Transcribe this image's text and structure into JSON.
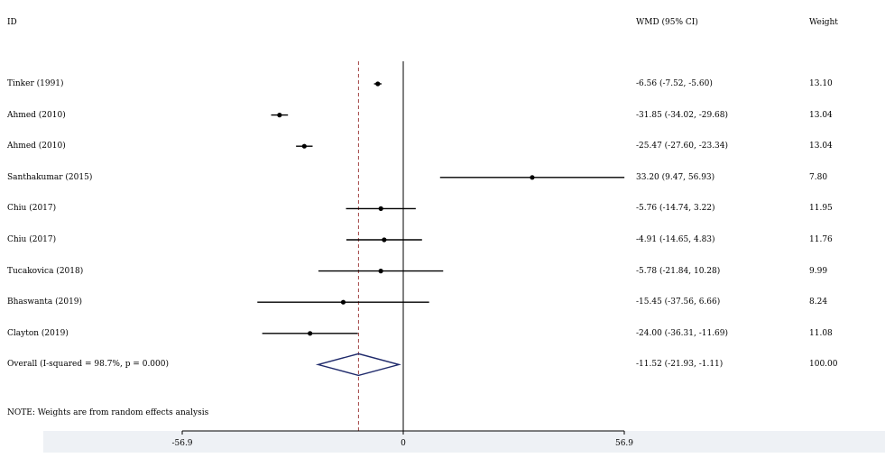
{
  "header": {
    "id_label": "ID",
    "wmd_label": "WMD (95% CI)",
    "weight_label": "Weight"
  },
  "note": "NOTE: Weights are from random effects analysis",
  "colors": {
    "diamond": "#1f2a6b",
    "reference_line": "#a04040",
    "axis_band": "#eef1f5"
  },
  "chart_data": {
    "type": "forest",
    "x_ticks": [
      -56.9,
      0,
      56.9
    ],
    "x_tick_labels": [
      "-56.9",
      "0",
      "56.9"
    ],
    "xlim": [
      -56.9,
      56.9
    ],
    "null_line": 0,
    "overall_line": -11.52,
    "studies": [
      {
        "id": "Tinker (1991)",
        "est": -6.56,
        "lo": -7.52,
        "hi": -5.6,
        "ci_text": "-6.56 (-7.52, -5.60)",
        "weight": "13.10"
      },
      {
        "id": "Ahmed (2010)",
        "est": -31.85,
        "lo": -34.02,
        "hi": -29.68,
        "ci_text": "-31.85 (-34.02, -29.68)",
        "weight": "13.04"
      },
      {
        "id": "Ahmed (2010)",
        "est": -25.47,
        "lo": -27.6,
        "hi": -23.34,
        "ci_text": "-25.47 (-27.60, -23.34)",
        "weight": "13.04"
      },
      {
        "id": "Santhakumar (2015)",
        "est": 33.2,
        "lo": 9.47,
        "hi": 56.93,
        "ci_text": "33.20 (9.47, 56.93)",
        "weight": "7.80"
      },
      {
        "id": "Chiu (2017)",
        "est": -5.76,
        "lo": -14.74,
        "hi": 3.22,
        "ci_text": "-5.76 (-14.74, 3.22)",
        "weight": "11.95"
      },
      {
        "id": "Chiu (2017)",
        "est": -4.91,
        "lo": -14.65,
        "hi": 4.83,
        "ci_text": "-4.91 (-14.65, 4.83)",
        "weight": "11.76"
      },
      {
        "id": "Tucakovica (2018)",
        "est": -5.78,
        "lo": -21.84,
        "hi": 10.28,
        "ci_text": "-5.78 (-21.84, 10.28)",
        "weight": "9.99"
      },
      {
        "id": "Bhaswanta (2019)",
        "est": -15.45,
        "lo": -37.56,
        "hi": 6.66,
        "ci_text": "-15.45 (-37.56, 6.66)",
        "weight": "8.24"
      },
      {
        "id": "Clayton (2019)",
        "est": -24.0,
        "lo": -36.31,
        "hi": -11.69,
        "ci_text": "-24.00 (-36.31, -11.69)",
        "weight": "11.08"
      }
    ],
    "overall": {
      "id": "Overall  (I-squared = 98.7%, p = 0.000)",
      "est": -11.52,
      "lo": -21.93,
      "hi": -1.11,
      "ci_text": "-11.52 (-21.93, -1.11)",
      "weight": "100.00"
    }
  }
}
